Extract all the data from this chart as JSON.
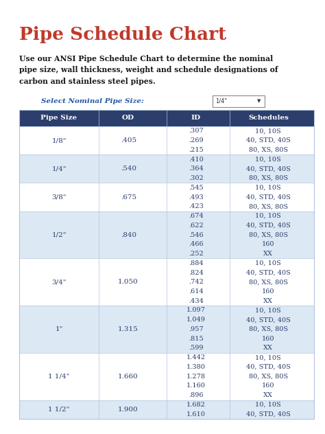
{
  "title": "Pipe Schedule Chart",
  "subtitle": "Use our ANSI Pipe Schedule Chart to determine the nominal\npipe size, wall thickness, weight and schedule designations of\ncarbon and stainless steel pipes.",
  "select_label": "Select Nominal Pipe Size:",
  "dropdown_text": "1/4\"",
  "title_color": "#c0392b",
  "subtitle_color": "#1a1a1a",
  "select_color": "#2255a4",
  "header_bg": "#2c3e6b",
  "header_text_color": "#ffffff",
  "even_row_bg": "#dce9f5",
  "odd_row_bg": "#ffffff",
  "text_color": "#2c3e6b",
  "border_color": "#b0c4de",
  "headers": [
    "Pipe Size",
    "OD",
    "ID",
    "Schedules"
  ],
  "rows": [
    {
      "pipe_size": "1/8\"",
      "od": ".405",
      "ids": [
        ".307",
        ".269",
        ".215"
      ],
      "schedules": [
        "10, 10S",
        "40, STD, 40S",
        "80, XS, 80S"
      ],
      "shaded": false
    },
    {
      "pipe_size": "1/4\"",
      "od": ".540",
      "ids": [
        ".410",
        ".364",
        ".302"
      ],
      "schedules": [
        "10, 10S",
        "40, STD, 40S",
        "80, XS, 80S"
      ],
      "shaded": true
    },
    {
      "pipe_size": "3/8\"",
      "od": ".675",
      "ids": [
        ".545",
        ".493",
        ".423"
      ],
      "schedules": [
        "10, 10S",
        "40, STD, 40S",
        "80, XS, 80S"
      ],
      "shaded": false
    },
    {
      "pipe_size": "1/2\"",
      "od": ".840",
      "ids": [
        ".674",
        ".622",
        ".546",
        ".466",
        ".252"
      ],
      "schedules": [
        "10, 10S",
        "40, STD, 40S",
        "80, XS, 80S",
        "160",
        "XX"
      ],
      "shaded": true
    },
    {
      "pipe_size": "3/4\"",
      "od": "1.050",
      "ids": [
        ".884",
        ".824",
        ".742",
        ".614",
        ".434"
      ],
      "schedules": [
        "10, 10S",
        "40, STD, 40S",
        "80, XS, 80S",
        "160",
        "XX"
      ],
      "shaded": false
    },
    {
      "pipe_size": "1\"",
      "od": "1.315",
      "ids": [
        "1.097",
        "1.049",
        ".957",
        ".815",
        ".599"
      ],
      "schedules": [
        "10, 10S",
        "40, STD, 40S",
        "80, XS, 80S",
        "160",
        "XX"
      ],
      "shaded": true
    },
    {
      "pipe_size": "1 1/4\"",
      "od": "1.660",
      "ids": [
        "1.442",
        "1.380",
        "1.278",
        "1.160",
        ".896"
      ],
      "schedules": [
        "10, 10S",
        "40, STD, 40S",
        "80, XS, 80S",
        "160",
        "XX"
      ],
      "shaded": false
    },
    {
      "pipe_size": "1 1/2\"",
      "od": "1.900",
      "ids": [
        "1.682",
        "1.610"
      ],
      "schedules": [
        "10, 10S",
        "40, STD, 40S"
      ],
      "shaded": true
    }
  ]
}
